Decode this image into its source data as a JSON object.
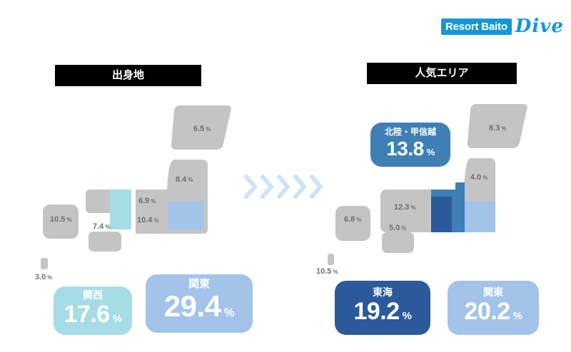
{
  "logo": {
    "box_text": "Resort Baito",
    "script_text": "Dive",
    "color": "#1597d6"
  },
  "left": {
    "header": "出身地",
    "regions": {
      "hokkaido": "6.5",
      "tohoku": "8.4",
      "chubu": "6.9",
      "tokai": "10.4",
      "shikoku": "7.4",
      "kyushu": "10.5",
      "okinawa": "3.0"
    },
    "highlights": [
      {
        "name": "関西",
        "value": "17.6",
        "color": "#a6dce6"
      },
      {
        "name": "関東",
        "value": "29.4",
        "color": "#a3c4e8"
      }
    ]
  },
  "right": {
    "header": "人気エリア",
    "regions": {
      "hokkaido": "8.3",
      "tohoku": "4.0",
      "chubu": "12.3",
      "shikoku": "5.0",
      "kyushu": "6.8",
      "okinawa": "10.5"
    },
    "highlights": [
      {
        "name": "北陸・甲信越",
        "value": "13.8",
        "color": "#3e7fb5"
      },
      {
        "name": "東海",
        "value": "19.2",
        "color": "#2a5a99"
      },
      {
        "name": "関東",
        "value": "20.2",
        "color": "#a3c4e8"
      }
    ]
  },
  "unit": "%",
  "colors": {
    "gray": "#c4c4c4",
    "arrow": "#cfe3f4"
  }
}
